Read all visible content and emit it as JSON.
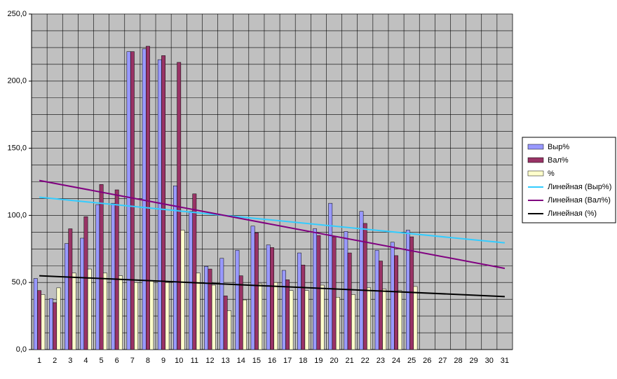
{
  "chart_data": {
    "type": "bar",
    "categories": [
      "1",
      "2",
      "3",
      "4",
      "5",
      "6",
      "7",
      "8",
      "9",
      "10",
      "11",
      "12",
      "13",
      "14",
      "15",
      "16",
      "17",
      "18",
      "19",
      "20",
      "21",
      "22",
      "23",
      "24",
      "25",
      "26",
      "27",
      "28",
      "29",
      "30",
      "31"
    ],
    "series": [
      {
        "name": "Выр%",
        "color": "#9999ff",
        "values": [
          53,
          38,
          79,
          83,
          108,
          109,
          222,
          224,
          216,
          122,
          103,
          62,
          68,
          74,
          92,
          78,
          59,
          72,
          90,
          109,
          88,
          103,
          74,
          80,
          89,
          null,
          null,
          null,
          null,
          null,
          null
        ]
      },
      {
        "name": "Вал%",
        "color": "#993366",
        "values": [
          44,
          35,
          90,
          99,
          123,
          119,
          222,
          226,
          219,
          214,
          116,
          60,
          40,
          55,
          87,
          76,
          52,
          63,
          85,
          84,
          72,
          94,
          66,
          70,
          84,
          null,
          null,
          null,
          null,
          null,
          null
        ]
      },
      {
        "name": "%",
        "color": "#ffffcc",
        "values": [
          41,
          46,
          57,
          60,
          57,
          55,
          50,
          51,
          50,
          89,
          57,
          48,
          29,
          37,
          49,
          50,
          44,
          44,
          48,
          39,
          41,
          46,
          45,
          44,
          47,
          null,
          null,
          null,
          null,
          null,
          null
        ]
      }
    ],
    "trendlines": [
      {
        "name": "Линейная  (Выр%)",
        "color": "#33ccff",
        "x": [
          1,
          31
        ],
        "values": [
          113.5,
          79.5
        ]
      },
      {
        "name": "Линейная  (Вал%)",
        "color": "#800080",
        "x": [
          1,
          31
        ],
        "values": [
          126,
          60.5
        ]
      },
      {
        "name": "Линейная  (%)",
        "color": "#000000",
        "x": [
          1,
          31
        ],
        "values": [
          55,
          39.5
        ]
      }
    ],
    "ylim": [
      0,
      250
    ],
    "yticks": [
      {
        "value": 0,
        "label": "0,0"
      },
      {
        "value": 50,
        "label": "50,0"
      },
      {
        "value": 100,
        "label": "100,0"
      },
      {
        "value": 150,
        "label": "150,0"
      },
      {
        "value": 200,
        "label": "200,0"
      },
      {
        "value": 250,
        "label": "250,0"
      }
    ],
    "ygrid_step": 12.5,
    "grid": true,
    "legend": "right"
  }
}
